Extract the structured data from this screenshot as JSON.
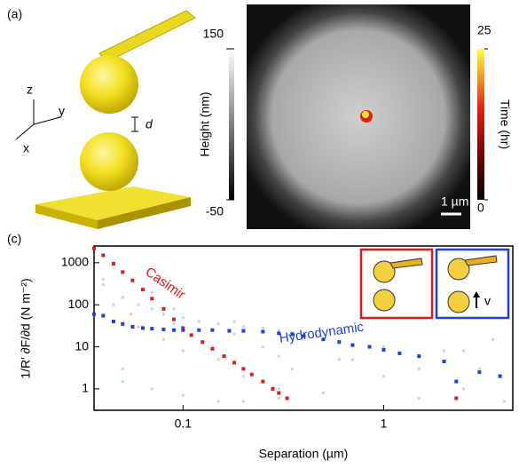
{
  "panel_a": {
    "label": "(a)",
    "axes": [
      "z",
      "y",
      "x"
    ],
    "gap": "d"
  },
  "panel_b": {
    "height_label": "Height (nm)",
    "height_lim": [
      -50,
      150
    ],
    "height_ticks": [
      150,
      -50
    ],
    "time_label": "Time (hr)",
    "time_lim": [
      0,
      25
    ],
    "time_ticks": [
      25,
      0
    ],
    "scale_bar": "1 µm"
  },
  "chart_data": {
    "type": "scatter",
    "panel_label": "(c)",
    "xlabel": "Separation (µm)",
    "ylabel": "1/R′ ∂F/∂d (N m⁻²)",
    "xscale": "log",
    "yscale": "log",
    "xlim": [
      0.036,
      4.4
    ],
    "ylim": [
      0.31,
      2500
    ],
    "xticks": [
      0.1,
      1
    ],
    "yticks": [
      1,
      10,
      100,
      1000
    ],
    "inset_label": "v",
    "series": [
      {
        "color": "#f6c4c8",
        "x": [
          0.04,
          0.045,
          0.05,
          0.055,
          0.06,
          0.07,
          0.08,
          0.09,
          0.1,
          0.12,
          0.15,
          0.18,
          0.2,
          0.25,
          0.3,
          0.35,
          0.5,
          0.7,
          1,
          1.5,
          2,
          2.5,
          3,
          4,
          0.05,
          0.07,
          0.1,
          0.15,
          0.2,
          0.3
        ],
        "values": [
          400,
          900,
          150,
          60,
          30,
          200,
          15,
          80,
          8,
          40,
          5,
          20,
          2,
          10,
          1,
          3,
          0.8,
          5,
          2,
          0.6,
          8,
          1,
          3,
          0.5,
          3,
          1,
          0.7,
          0.5,
          0.5,
          6
        ]
      },
      {
        "color": "#bcd8f2",
        "x": [
          0.04,
          0.05,
          0.06,
          0.07,
          0.08,
          0.1,
          0.12,
          0.15,
          0.2,
          0.25,
          0.3,
          0.35,
          0.4,
          0.045,
          0.09,
          0.18,
          0.6,
          1,
          1.5,
          2.5,
          3.5,
          0.05,
          0.3
        ],
        "values": [
          300,
          150,
          100,
          80,
          60,
          50,
          40,
          35,
          30,
          28,
          25,
          22,
          20,
          100,
          35,
          40,
          5,
          10,
          3,
          8,
          15,
          1.5,
          0.6
        ]
      },
      {
        "name": "Casimir",
        "color": "#e0191b",
        "x": [
          0.036,
          0.04,
          0.045,
          0.05,
          0.056,
          0.063,
          0.07,
          0.08,
          0.09,
          0.1,
          0.11,
          0.125,
          0.14,
          0.16,
          0.18,
          0.2,
          0.22,
          0.25,
          0.28,
          0.3,
          0.33,
          2.3
        ],
        "values": [
          2200,
          1500,
          950,
          600,
          380,
          230,
          140,
          80,
          45,
          28,
          19,
          13,
          9,
          6,
          4.2,
          3,
          2.2,
          1.5,
          1,
          0.8,
          0.6,
          0.6
        ]
      },
      {
        "name": "Hydrodynamic",
        "color": "#1f3fe0",
        "x": [
          0.036,
          0.04,
          0.045,
          0.05,
          0.056,
          0.063,
          0.07,
          0.08,
          0.09,
          0.1,
          0.12,
          0.14,
          0.17,
          0.2,
          0.25,
          0.3,
          0.35,
          0.4,
          0.5,
          0.6,
          0.7,
          0.85,
          1,
          1.2,
          1.5,
          2,
          2.3,
          3,
          3.8
        ],
        "values": [
          60,
          55,
          40,
          35,
          30,
          28,
          27,
          26,
          25,
          25,
          25,
          25,
          24,
          24,
          23,
          21,
          20,
          18,
          15,
          13,
          11,
          10,
          8.5,
          7,
          6,
          4.5,
          1.5,
          2.5,
          2
        ]
      }
    ]
  }
}
